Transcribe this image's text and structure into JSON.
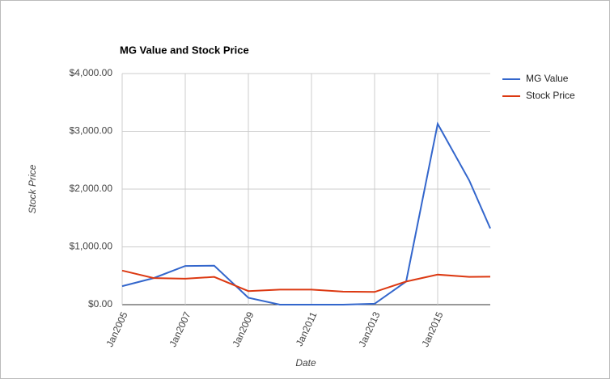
{
  "chart_data": {
    "type": "line",
    "title": "MG Value and Stock Price",
    "x_label": "Date",
    "y_label": "Stock Price",
    "x": [
      "2005-01",
      "2006-01",
      "2007-01",
      "2007-12",
      "2009-01",
      "2010-01",
      "2011-01",
      "2012-01",
      "2013-01",
      "2014-01",
      "2015-01",
      "2016-01",
      "2016-09"
    ],
    "series": [
      {
        "name": "MG Value",
        "color": "#3366cc",
        "values": [
          320,
          460,
          670,
          675,
          120,
          0,
          0,
          0,
          15,
          400,
          3130,
          2150,
          1320
        ]
      },
      {
        "name": "Stock Price",
        "color": "#dc3912",
        "values": [
          590,
          460,
          450,
          480,
          235,
          260,
          260,
          225,
          220,
          400,
          520,
          480,
          485
        ]
      }
    ],
    "xlim": [
      "2005-01",
      "2016-09"
    ],
    "xticks": [
      {
        "value": "2005-01",
        "label": "Jan2005"
      },
      {
        "value": "2007-01",
        "label": "Jan2007"
      },
      {
        "value": "2009-01",
        "label": "Jan2009"
      },
      {
        "value": "2011-01",
        "label": "Jan2011"
      },
      {
        "value": "2013-01",
        "label": "Jan2013"
      },
      {
        "value": "2015-01",
        "label": "Jan2015"
      }
    ],
    "ylim": [
      0,
      4000
    ],
    "yticks": [
      {
        "value": 0,
        "label": "$0.00"
      },
      {
        "value": 1000,
        "label": "$1,000.00"
      },
      {
        "value": 2000,
        "label": "$2,000.00"
      },
      {
        "value": 3000,
        "label": "$3,000.00"
      },
      {
        "value": 4000,
        "label": "$4,000.00"
      }
    ],
    "grid": true,
    "legend": "right"
  }
}
